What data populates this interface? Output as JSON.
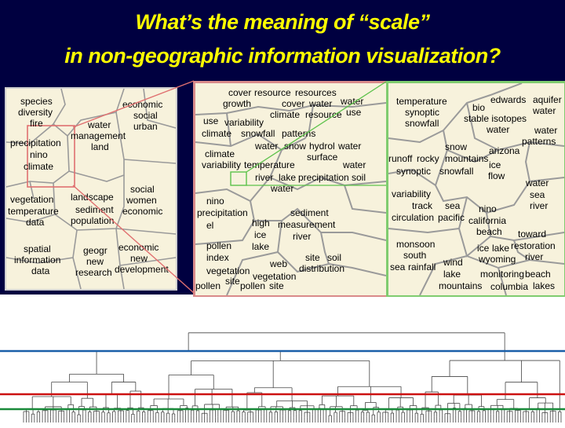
{
  "slide": {
    "title_line_1": "What’s the meaning of “scale”",
    "title_line_2": "in non-geographic information visualization?"
  },
  "colors": {
    "title_text": "#ffff00",
    "background": "#000040",
    "panel_fill": "#f7f2dc",
    "overview_highlight": "#e07070",
    "zoom_highlight": "#5cc24a",
    "cut_line_top": "#1a5fa8",
    "cut_line_middle": "#cc1111",
    "cut_line_bottom": "#1a8a3a"
  },
  "overview_map": {
    "labels": [
      "species",
      "diversity",
      "fire",
      "economic",
      "social",
      "urban",
      "water",
      "management",
      "land",
      "precipitation",
      "nino",
      "climate",
      "social",
      "women",
      "economic",
      "vegetation",
      "landscape",
      "temperature",
      "sediment",
      "data",
      "population",
      "spatial",
      "geogr",
      "economic",
      "information",
      "new",
      "new",
      "data",
      "research",
      "development"
    ]
  },
  "zoom_map_1": {
    "labels": [
      "cover",
      "resource",
      "resources",
      "growth",
      "cover",
      "water",
      "water",
      "climate",
      "resource",
      "use",
      "use",
      "variability",
      "climate",
      "snowfall",
      "patterns",
      "water",
      "snow",
      "hydrol",
      "water",
      "climate",
      "surface",
      "variability",
      "temperature",
      "water",
      "river",
      "lake",
      "precipitation",
      "soil",
      "water",
      "nino",
      "precipitation",
      "sediment",
      "el",
      "high",
      "measurement",
      "ice",
      "river",
      "pollen",
      "lake",
      "index",
      "web",
      "site",
      "soil",
      "vegetation",
      "distribution",
      "vegetation",
      "pollen",
      "site",
      "pollen",
      "site"
    ]
  },
  "zoom_map_2": {
    "labels": [
      "temperature",
      "edwards",
      "aquifer",
      "synoptic",
      "bio",
      "water",
      "snowfall",
      "stable isotopes",
      "water",
      "water",
      "patterns",
      "snow",
      "arizona",
      "runoff",
      "rocky",
      "mountains",
      "ice",
      "synoptic",
      "snowfall",
      "flow",
      "variability",
      "water",
      "track",
      "sea",
      "nino",
      "sea",
      "circulation",
      "pacific",
      "california",
      "river",
      "beach",
      "toward",
      "monsoon",
      "ice",
      "lake",
      "restoration",
      "south",
      "wyoming",
      "river",
      "sea",
      "rainfall",
      "wind",
      "lake",
      "monitoring",
      "beach",
      "mountains",
      "columbia",
      "lakes"
    ]
  }
}
